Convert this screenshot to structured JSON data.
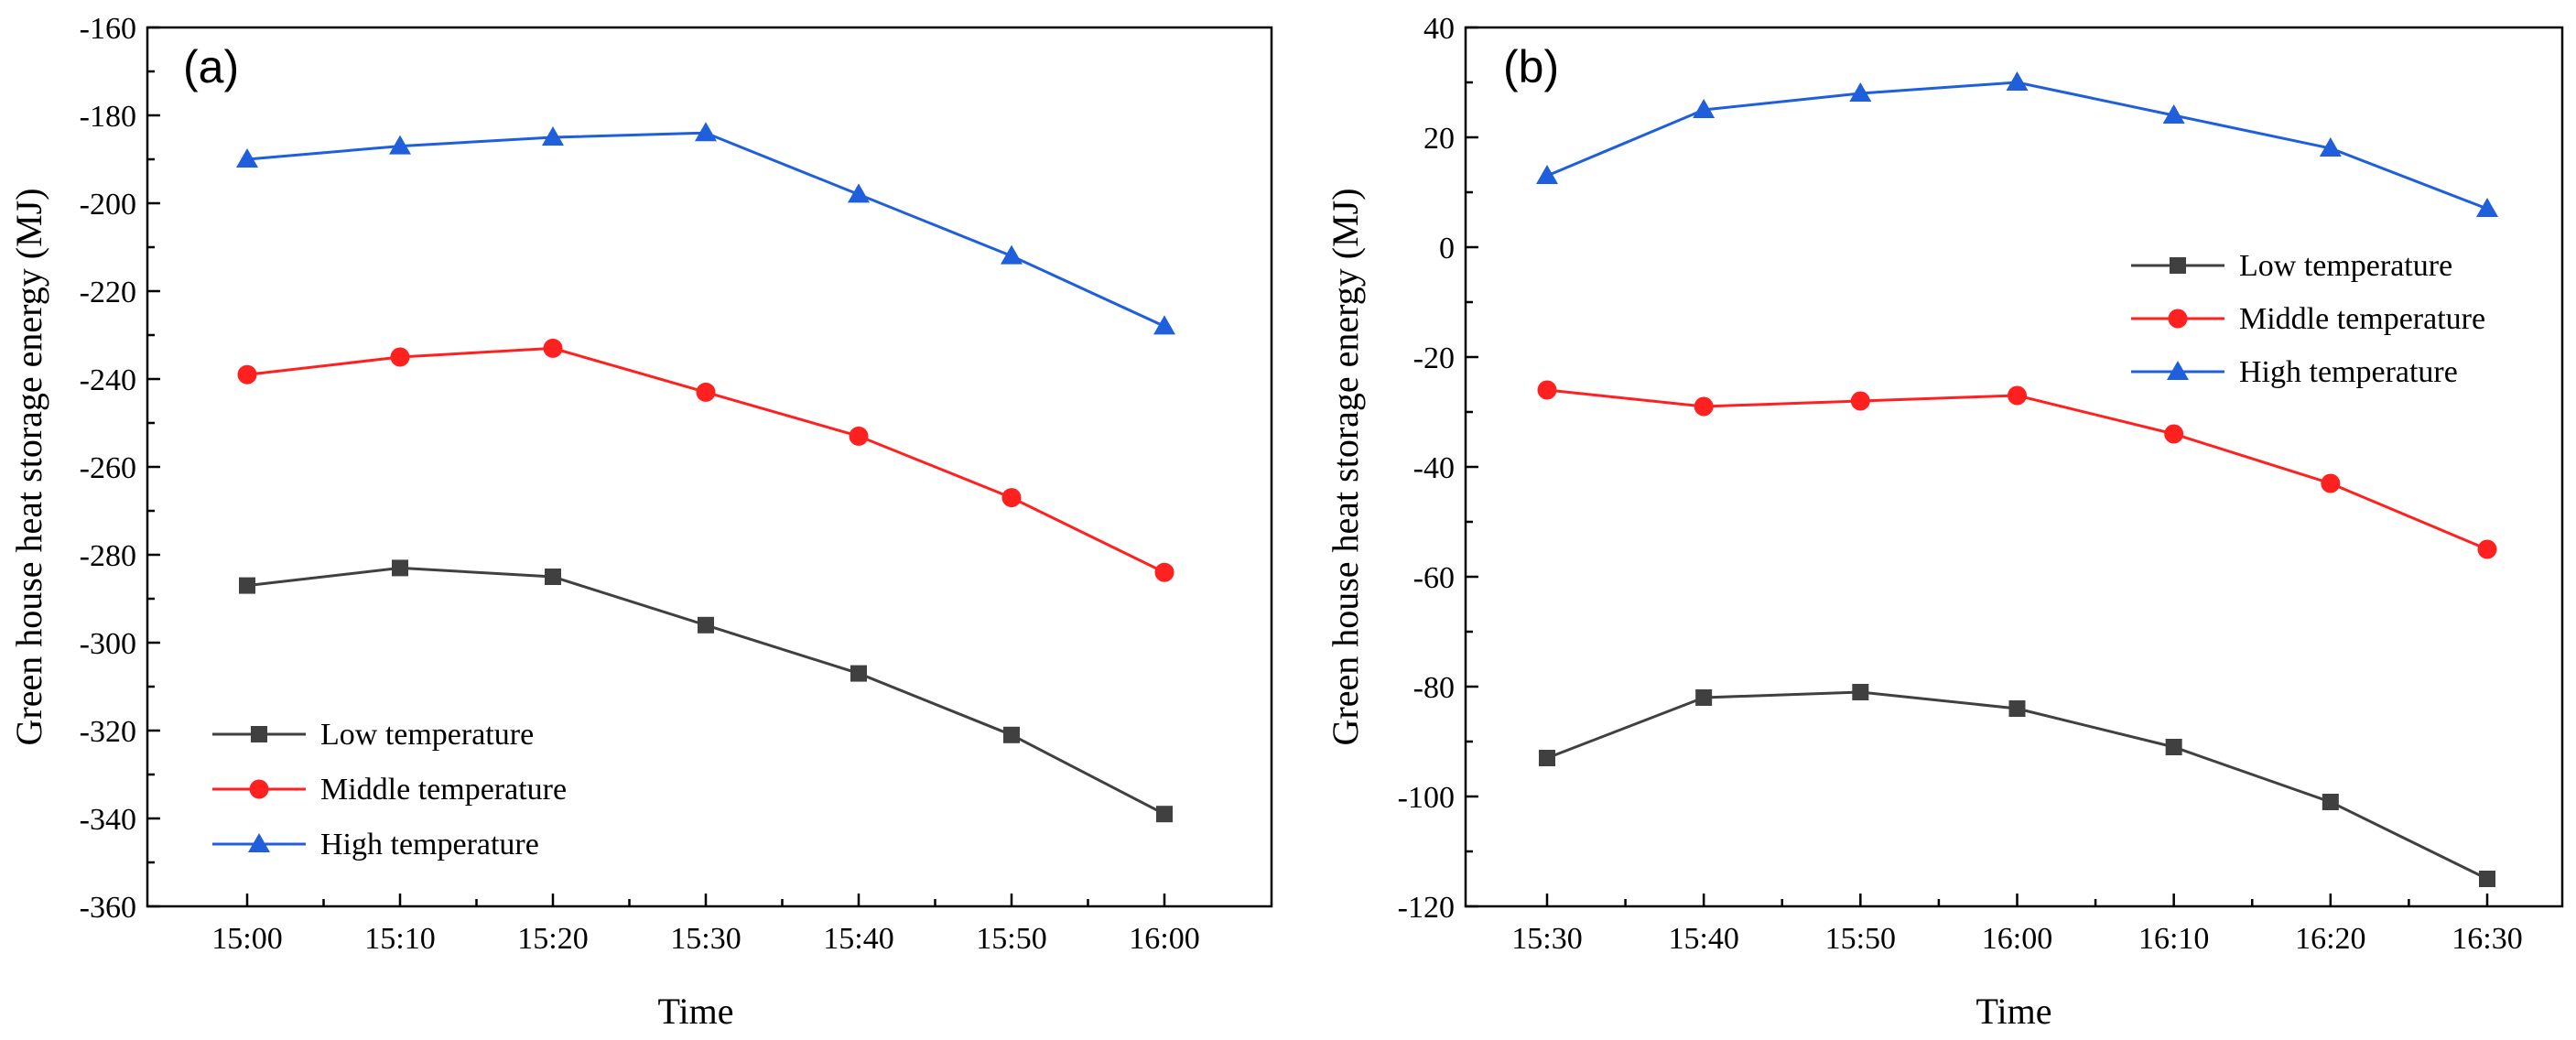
{
  "chart_data": [
    {
      "type": "line",
      "panel_label": "(a)",
      "xlabel": "Time",
      "ylabel": "Green house heat storage energy (MJ)",
      "categories": [
        "15:00",
        "15:10",
        "15:20",
        "15:30",
        "15:40",
        "15:50",
        "16:00"
      ],
      "ylim": [
        -360,
        -160
      ],
      "yticks": [
        -160,
        -180,
        -200,
        -220,
        -240,
        -260,
        -280,
        -300,
        -320,
        -340,
        -360
      ],
      "legend_position": "bottom-left",
      "series": [
        {
          "name": "Low temperature",
          "marker": "square",
          "color": "#404040",
          "values": [
            -287,
            -283,
            -285,
            -296,
            -307,
            -321,
            -339
          ]
        },
        {
          "name": "Middle temperature",
          "marker": "circle",
          "color": "#ff2020",
          "values": [
            -239,
            -235,
            -233,
            -243,
            -253,
            -267,
            -284
          ]
        },
        {
          "name": "High temperature",
          "marker": "triangle",
          "color": "#1f5fdc",
          "values": [
            -190,
            -187,
            -185,
            -184,
            -198,
            -212,
            -228
          ]
        }
      ]
    },
    {
      "type": "line",
      "panel_label": "(b)",
      "xlabel": "Time",
      "ylabel": "Green house heat storage energy (MJ)",
      "categories": [
        "15:30",
        "15:40",
        "15:50",
        "16:00",
        "16:10",
        "16:20",
        "16:30"
      ],
      "ylim": [
        -120,
        40
      ],
      "yticks": [
        40,
        20,
        0,
        -20,
        -40,
        -60,
        -80,
        -100,
        -120
      ],
      "legend_position": "top-right",
      "series": [
        {
          "name": "Low temperature",
          "marker": "square",
          "color": "#404040",
          "values": [
            -93,
            -82,
            -81,
            -84,
            -91,
            -101,
            -115
          ]
        },
        {
          "name": "Middle temperature",
          "marker": "circle",
          "color": "#ff2020",
          "values": [
            -26,
            -29,
            -28,
            -27,
            -34,
            -43,
            -55
          ]
        },
        {
          "name": "High temperature",
          "marker": "triangle",
          "color": "#1f5fdc",
          "values": [
            13,
            25,
            28,
            30,
            24,
            18,
            7
          ]
        }
      ]
    }
  ]
}
